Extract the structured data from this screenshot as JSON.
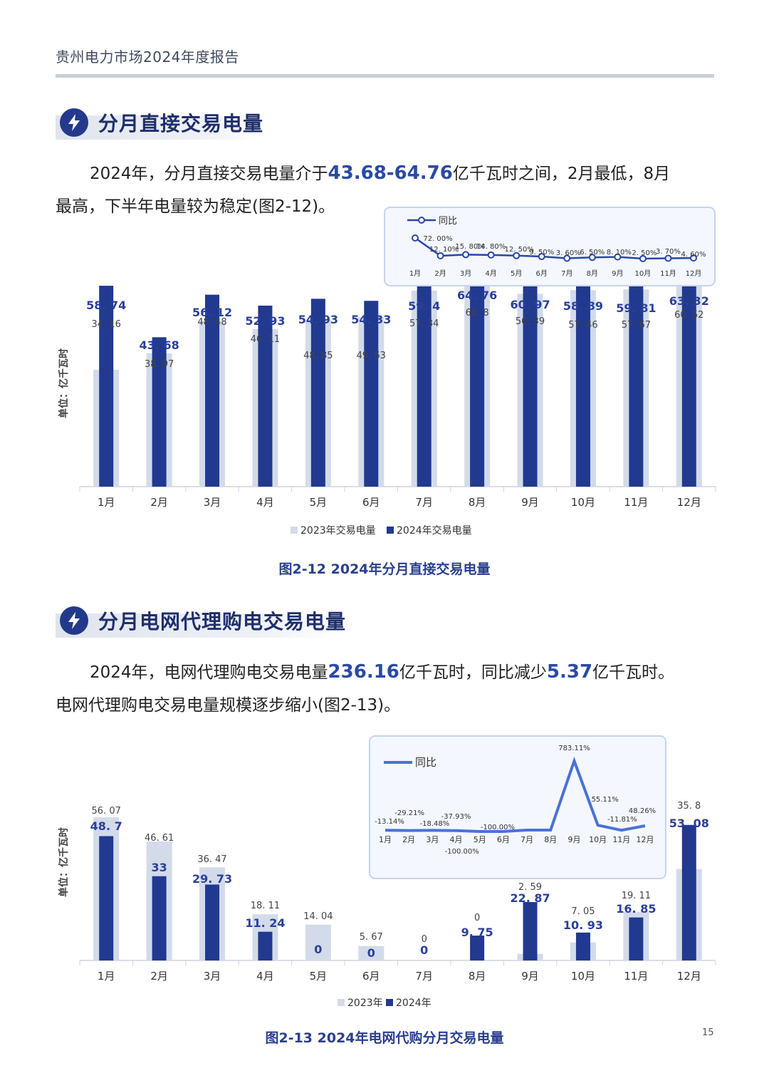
{
  "header": {
    "title": "贵州电力市场2024年度报告"
  },
  "section1": {
    "title": "分月直接交易电量",
    "para_a": "2024年，分月直接交易电量介于",
    "para_hl": "43.68-64.76",
    "para_b": "亿千瓦时之间，2月最低，8月",
    "para_c": "最高，下半年电量较为稳定(图2-12)。",
    "caption": "图2-12 2024年分月直接交易电量"
  },
  "section2": {
    "title": "分月电网代理购电交易电量",
    "para_a": "2024年，电网代理购电交易电量",
    "para_hl1": "236.16",
    "para_b": "亿千瓦时，同比减少",
    "para_hl2": "5.37",
    "para_c": "亿千瓦时。",
    "para_d": "电网代理购电交易电量规模逐步缩小(图2-13)。",
    "caption": "图2-13 2024年电网代购分月交易电量"
  },
  "page_number": "15",
  "colors": {
    "bar2023": "#d3dbea",
    "bar2024": "#21398f",
    "line": "#2a46a8",
    "line2": "#4a72d6",
    "accent": "#2a4aa6"
  },
  "chart_data": [
    {
      "type": "bar",
      "ylabel": "单位：亿千瓦时",
      "categories": [
        "1月",
        "2月",
        "3月",
        "4月",
        "5月",
        "6月",
        "7月",
        "8月",
        "9月",
        "10月",
        "11月",
        "12月"
      ],
      "series": [
        {
          "name": "2023年交易电量",
          "values": [
            34.16,
            38.97,
            48.48,
            46.11,
            48.85,
            49.63,
            57.34,
            60.8,
            56.39,
            57.46,
            57.67,
            60.52
          ]
        },
        {
          "name": "2024年交易电量",
          "values": [
            58.74,
            43.68,
            56.12,
            52.93,
            54.93,
            54.33,
            59.4,
            64.76,
            60.97,
            58.89,
            59.81,
            63.32
          ]
        }
      ],
      "labels2023": [
        "34. 16",
        "38. 97",
        "48. 48",
        "46. 11",
        "48. 85",
        "49. 63",
        "57. 34",
        "60. 8",
        "56. 39",
        "57. 46",
        "57. 67",
        "60. 52"
      ],
      "labels2024": [
        "58. 74",
        "43. 68",
        "56. 12",
        "52. 93",
        "54. 93",
        "54. 33",
        "59. 4",
        "64. 76",
        "60. 97",
        "58. 89",
        "59. 81",
        "63. 32"
      ],
      "ylim": [
        0,
        70
      ],
      "inset": {
        "type": "line",
        "legend": "同比",
        "categories": [
          "1月",
          "2月",
          "3月",
          "4月",
          "5月",
          "6月",
          "7月",
          "8月",
          "9月",
          "10月",
          "11月",
          "12月"
        ],
        "values": [
          72.0,
          12.1,
          15.8,
          14.8,
          12.5,
          9.5,
          3.6,
          6.5,
          8.1,
          2.5,
          3.7,
          4.6
        ],
        "labels": [
          "72. 00%",
          "12. 10%",
          "15. 80%",
          "14. 80%",
          "12. 50%",
          "9. 50%",
          "3. 60%",
          "6. 50%",
          "8. 10%",
          "2. 50%",
          "3. 70%",
          "4. 60%"
        ]
      }
    },
    {
      "type": "bar",
      "ylabel": "单位：亿千瓦时",
      "categories": [
        "1月",
        "2月",
        "3月",
        "4月",
        "5月",
        "6月",
        "7月",
        "8月",
        "9月",
        "10月",
        "11月",
        "12月"
      ],
      "series": [
        {
          "name": "2023年",
          "values": [
            56.07,
            46.61,
            36.47,
            18.11,
            14.04,
            5.67,
            0,
            0,
            2.59,
            7.05,
            19.11,
            35.8
          ]
        },
        {
          "name": "2024年",
          "values": [
            48.7,
            33,
            29.73,
            11.24,
            0,
            0,
            0,
            9.75,
            22.87,
            10.93,
            16.85,
            53.08
          ]
        }
      ],
      "labels2023": [
        "56. 07",
        "46. 61",
        "36. 47",
        "18. 11",
        "14. 04",
        "5. 67",
        "0",
        "0",
        "2. 59",
        "7. 05",
        "19. 11",
        "35. 8"
      ],
      "labels2024": [
        "48. 7",
        "33",
        "29. 73",
        "11. 24",
        "0",
        "0",
        "0",
        "9. 75",
        "22. 87",
        "10. 93",
        "16. 85",
        "53. 08"
      ],
      "ylim": [
        0,
        60
      ],
      "inset": {
        "type": "line",
        "legend": "同比",
        "categories": [
          "1月",
          "2月",
          "3月",
          "4月",
          "5月",
          "6月",
          "7月",
          "8月",
          "9月",
          "10月",
          "11月",
          "12月"
        ],
        "values": [
          -13.14,
          -29.21,
          -18.48,
          -37.93,
          -100.0,
          -100.0,
          0,
          0,
          783.11,
          55.11,
          -11.81,
          48.26
        ],
        "labels": [
          "-13.14%",
          "-29.21%",
          "-18.48%",
          "-37.93%",
          "-100.00%",
          "-100.00%",
          "",
          "",
          "783.11%",
          "55.11%",
          "-11.81%",
          "48.26%"
        ]
      }
    }
  ]
}
